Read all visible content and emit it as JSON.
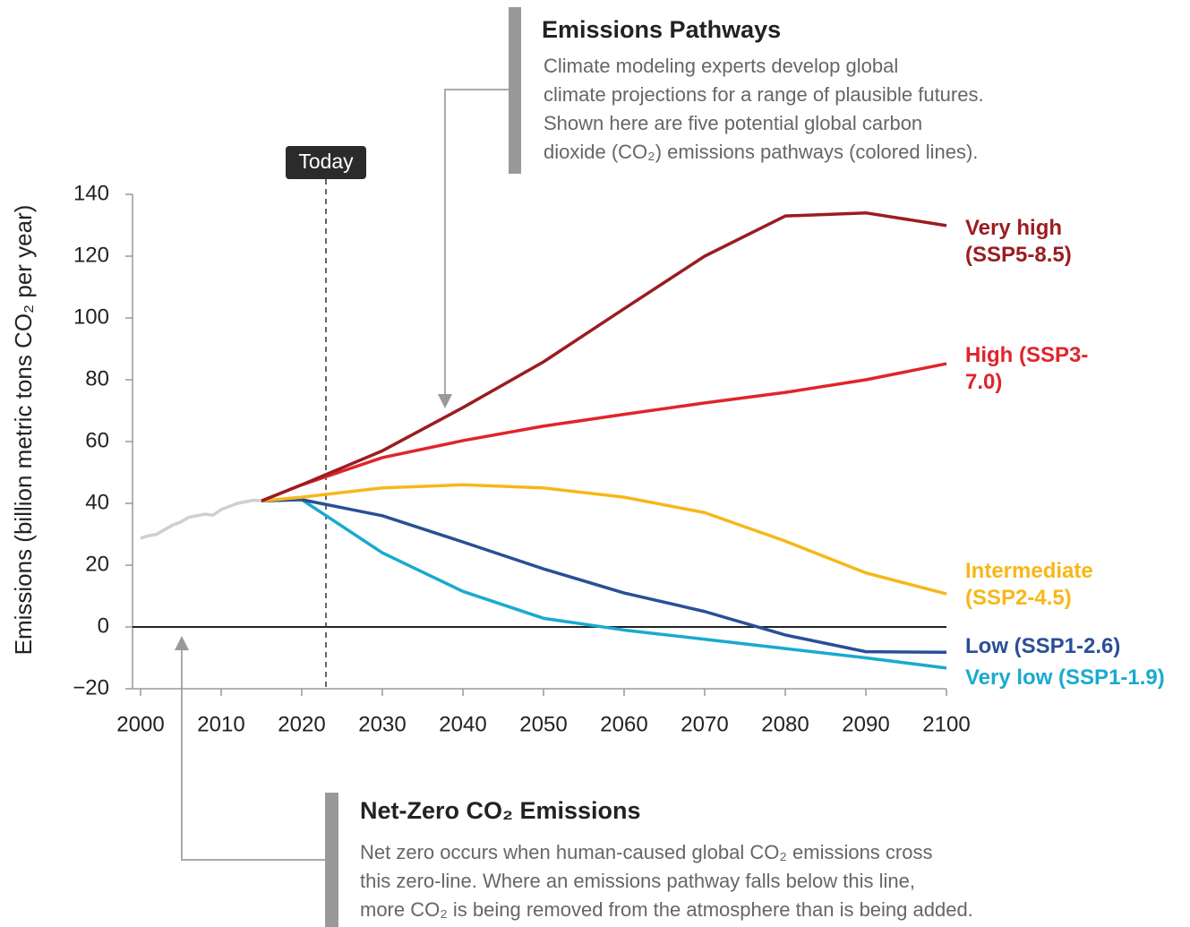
{
  "chart_data": {
    "type": "line",
    "ylabel": "Emissions (billion metric tons CO₂ per year)",
    "xlim": [
      1999,
      2100
    ],
    "ylim": [
      -20,
      140
    ],
    "xticks": [
      2000,
      2010,
      2020,
      2030,
      2040,
      2050,
      2060,
      2070,
      2080,
      2090,
      2100
    ],
    "yticks": [
      {
        "value": -20,
        "label": "−20"
      },
      0,
      20,
      40,
      60,
      80,
      100,
      120,
      140
    ],
    "zero_line": 0,
    "today": {
      "label": "Today",
      "x": 2023
    },
    "history": {
      "color": "#cfcfcf",
      "x": [
        2000,
        2001,
        2002,
        2003,
        2004,
        2005,
        2006,
        2007,
        2008,
        2009,
        2010,
        2011,
        2012,
        2013,
        2014,
        2015
      ],
      "values": [
        28.7,
        29.5,
        30,
        31.5,
        33,
        34,
        35.5,
        36,
        36.5,
        36.2,
        38,
        39,
        40,
        40.5,
        41,
        40.8
      ]
    },
    "x": [
      2015,
      2020,
      2030,
      2040,
      2050,
      2060,
      2070,
      2080,
      2090,
      2100
    ],
    "series": [
      {
        "name": "Very high (SSP5-8.5)",
        "color": "#9b1c1f",
        "values": [
          40.8,
          46,
          57,
          71,
          85.8,
          103,
          120,
          133,
          134,
          129.9
        ]
      },
      {
        "name": "High (SSP3-7.0)",
        "color": "#e0242b",
        "values": [
          40.8,
          46,
          54.8,
          60.3,
          65,
          68.8,
          72.5,
          75.9,
          80,
          85.2
        ]
      },
      {
        "name": "Intermediate (SSP2-4.5)",
        "color": "#f7b718",
        "values": [
          40.8,
          42,
          45,
          46,
          45,
          42,
          37,
          27.8,
          17.5,
          10.7
        ]
      },
      {
        "name": "Low (SSP1-2.6)",
        "color": "#2a4f96",
        "values": [
          40.8,
          41.2,
          36,
          27.5,
          18.8,
          11,
          5,
          -2.6,
          -8,
          -8.2
        ]
      },
      {
        "name": "Very low (SSP1-1.9)",
        "color": "#19aacf",
        "values": [
          40.8,
          41.2,
          24,
          11.5,
          2.8,
          -1,
          -4,
          -7,
          -10,
          -13.3
        ]
      }
    ],
    "annotations": [
      {
        "title": "Emissions Pathways",
        "lines": [
          "Climate modeling experts develop global",
          "climate projections for a range of plausible futures.",
          "Shown here are five potential global carbon",
          "dioxide (CO₂) emissions pathways (colored lines)."
        ]
      },
      {
        "title": "Net-Zero CO₂ Emissions",
        "lines": [
          "Net zero occurs when human-caused global CO₂ emissions cross",
          "this zero-line. Where an emissions pathway falls below this line,",
          "more CO₂ is being removed from the atmosphere than is being added."
        ]
      }
    ]
  }
}
